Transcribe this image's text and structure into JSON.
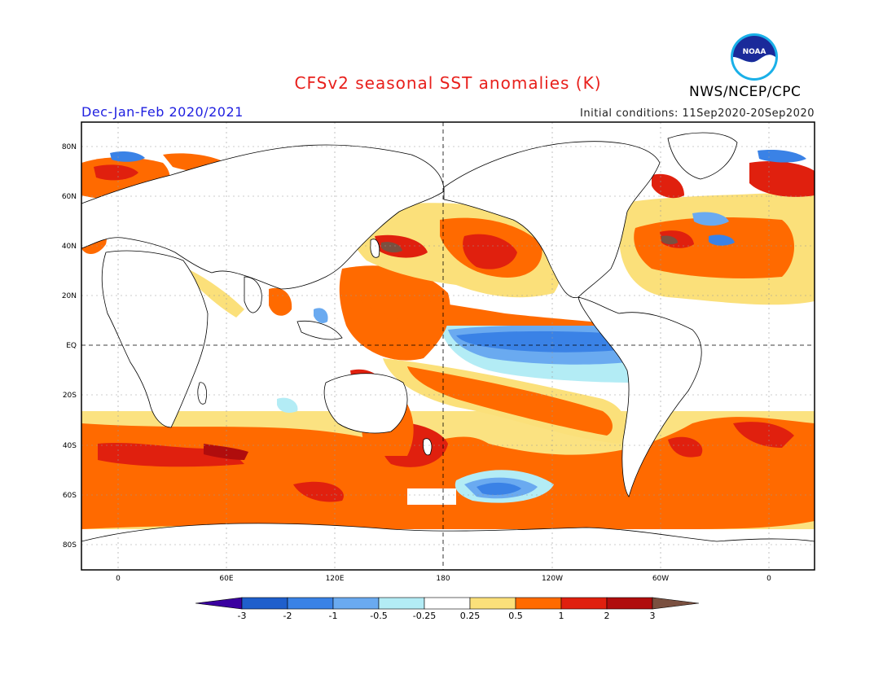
{
  "header": {
    "title": "CFSv2 seasonal SST anomalies (K)",
    "season": "Dec-Jan-Feb 2020/2021",
    "initial_conditions": "Initial conditions: 11Sep2020-20Sep2020",
    "agency": "NWS/NCEP/CPC",
    "logo_text": "NOAA"
  },
  "axes": {
    "lat_labels": [
      "80N",
      "60N",
      "40N",
      "20N",
      "EQ",
      "20S",
      "40S",
      "60S",
      "80S"
    ],
    "lon_labels": [
      "0",
      "60E",
      "120E",
      "180",
      "120W",
      "60W",
      "0"
    ]
  },
  "colorbar": {
    "labels": [
      "-3",
      "-2",
      "-1",
      "-0.5",
      "-0.25",
      "0.25",
      "0.5",
      "1",
      "2",
      "3"
    ],
    "colors": [
      "#3a00a0",
      "#1f5fcc",
      "#3a82e6",
      "#6aaaf0",
      "#b3ecf5",
      "#ffffff",
      "#fbe07a",
      "#ff6a00",
      "#e0200e",
      "#b00d0d",
      "#7a5040"
    ]
  }
}
